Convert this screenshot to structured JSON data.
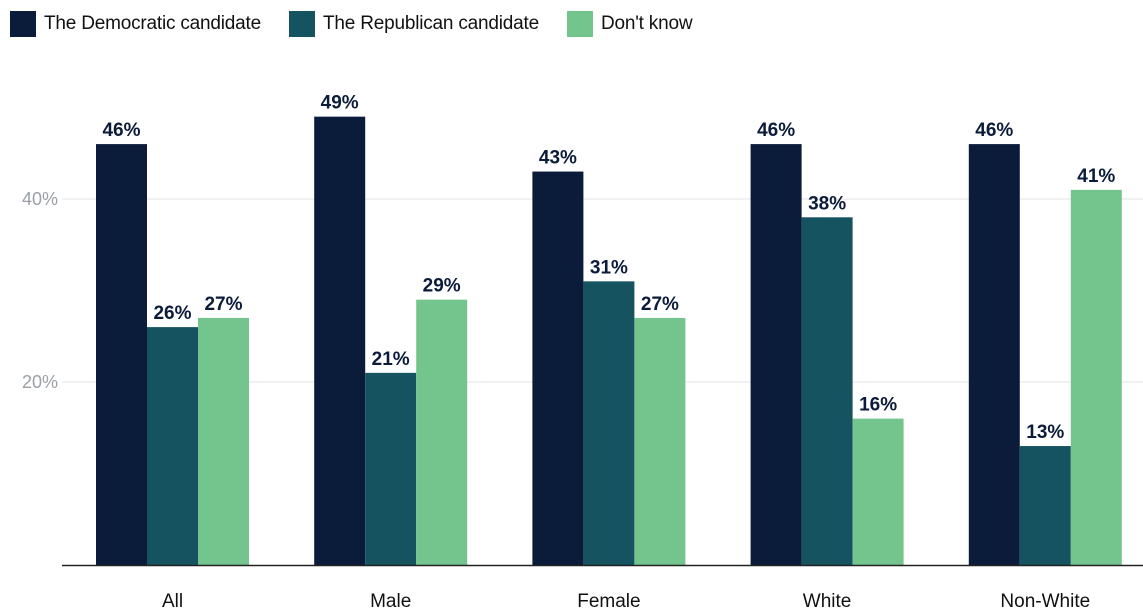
{
  "colors": {
    "democratic": "#0b1b3a",
    "republican": "#155361",
    "dont_know": "#74c48e",
    "grid": "#e3e3e3",
    "axis": "#222222"
  },
  "legend": [
    {
      "label": "The Democratic candidate",
      "color": "#0b1b3a"
    },
    {
      "label": "The Republican candidate",
      "color": "#155361"
    },
    {
      "label": "Don't know",
      "color": "#74c48e"
    }
  ],
  "chart_data": {
    "type": "bar",
    "categories": [
      "All",
      "Male",
      "Female",
      "White",
      "Non-White"
    ],
    "series": [
      {
        "name": "The Democratic candidate",
        "values": [
          46,
          49,
          43,
          46,
          46
        ],
        "color": "#0b1b3a"
      },
      {
        "name": "The Republican candidate",
        "values": [
          26,
          21,
          31,
          38,
          13
        ],
        "color": "#155361"
      },
      {
        "name": "Don't know",
        "values": [
          27,
          29,
          27,
          16,
          41
        ],
        "color": "#74c48e"
      }
    ],
    "value_suffix": "%",
    "yticks": [
      {
        "value": 20,
        "label": "20%"
      },
      {
        "value": 40,
        "label": "40%"
      }
    ],
    "ylim": [
      0,
      50
    ],
    "grid": true,
    "legend_position": "top-left",
    "title": "",
    "xlabel": "",
    "ylabel": ""
  }
}
